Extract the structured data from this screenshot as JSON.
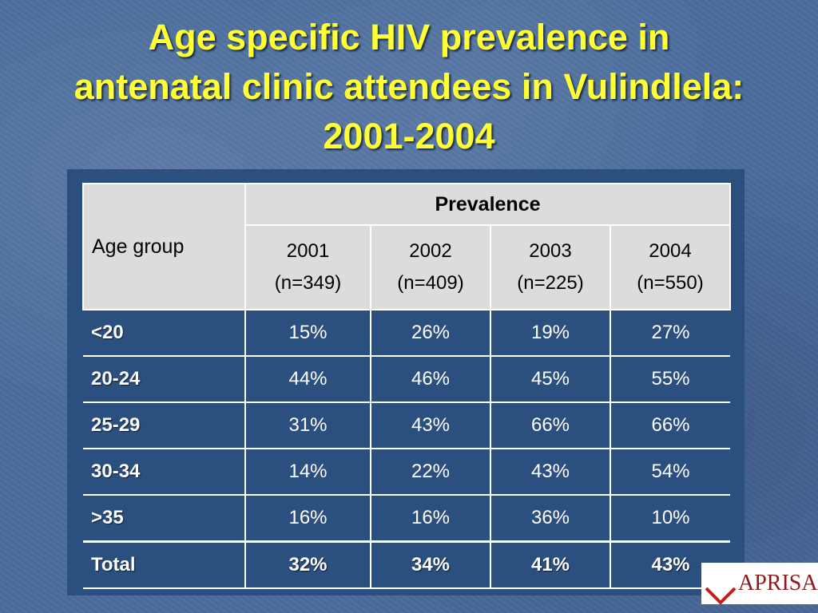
{
  "title": {
    "line1": "Age specific HIV prevalence in",
    "line2": "antenatal clinic attendees in Vulindlela:",
    "line3": "2001-2004"
  },
  "table": {
    "age_header": "Age group",
    "prevalence_header": "Prevalence",
    "years": [
      {
        "year": "2001",
        "n": "(n=349)"
      },
      {
        "year": "2002",
        "n": "(n=409)"
      },
      {
        "year": "2003",
        "n": "(n=225)"
      },
      {
        "year": "2004",
        "n": "(n=550)"
      }
    ],
    "rows": [
      {
        "age": "<20",
        "values": [
          "15%",
          "26%",
          "19%",
          "27%"
        ]
      },
      {
        "age": "20-24",
        "values": [
          "44%",
          "46%",
          "45%",
          "55%"
        ]
      },
      {
        "age": "25-29",
        "values": [
          "31%",
          "43%",
          "66%",
          "66%"
        ]
      },
      {
        "age": "30-34",
        "values": [
          "14%",
          "22%",
          "43%",
          "54%"
        ]
      },
      {
        "age": ">35",
        "values": [
          "16%",
          "16%",
          "36%",
          "10%"
        ]
      },
      {
        "age": "Total",
        "values": [
          "32%",
          "34%",
          "41%",
          "43%"
        ]
      }
    ]
  },
  "logo": {
    "text": "APRISA"
  },
  "colors": {
    "title": "#ffff33",
    "panel": "#2b4f7e",
    "header": "#dcdcdc"
  }
}
